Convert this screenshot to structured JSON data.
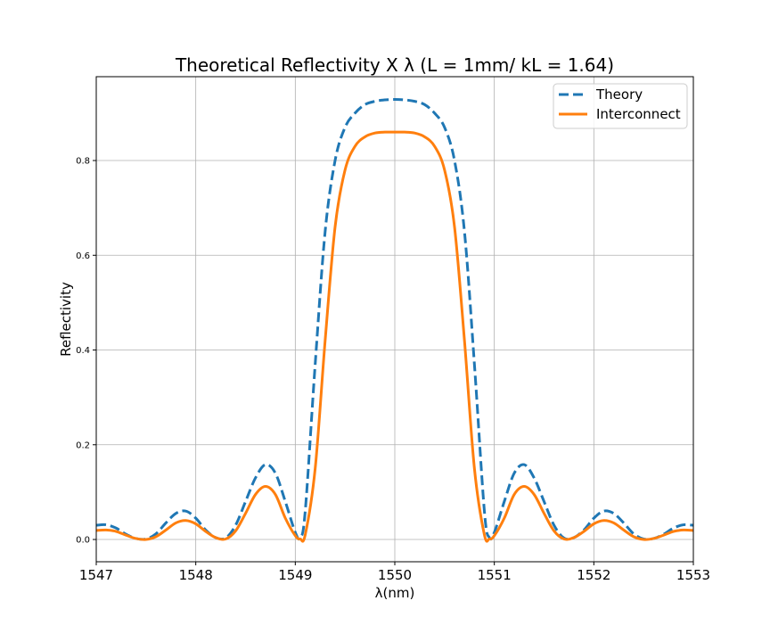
{
  "chart_data": {
    "type": "line",
    "title": "Theoretical Reflectivity X λ (L = 1mm/ kL = 1.64)",
    "xlabel": "λ(nm)",
    "ylabel": "Reflectivity",
    "xlim": [
      1547,
      1553
    ],
    "ylim": [
      -0.047,
      0.977
    ],
    "xticks": [
      "1547",
      "1548",
      "1549",
      "1550",
      "1551",
      "1552",
      "1553"
    ],
    "yticks": [
      "0.0",
      "0.2",
      "0.4",
      "0.6",
      "0.8"
    ],
    "grid": true,
    "legend_position": "top-right",
    "x": [
      1547.0,
      1547.1,
      1547.2,
      1547.3,
      1547.4,
      1547.5,
      1547.6,
      1547.7,
      1547.8,
      1547.9,
      1548.0,
      1548.1,
      1548.2,
      1548.3,
      1548.4,
      1548.5,
      1548.6,
      1548.7,
      1548.8,
      1548.9,
      1549.0,
      1549.05,
      1549.1,
      1549.2,
      1549.3,
      1549.4,
      1549.5,
      1549.6,
      1549.7,
      1549.8,
      1549.9,
      1550.0,
      1550.1,
      1550.2,
      1550.3,
      1550.4,
      1550.5,
      1550.6,
      1550.7,
      1550.8,
      1550.9,
      1550.95,
      1551.0,
      1551.1,
      1551.2,
      1551.3,
      1551.4,
      1551.5,
      1551.6,
      1551.7,
      1551.8,
      1551.9,
      1552.0,
      1552.1,
      1552.2,
      1552.3,
      1552.4,
      1552.5,
      1552.6,
      1552.7,
      1552.8,
      1552.9,
      1553.0
    ],
    "series": [
      {
        "name": "Theory",
        "color": "#1f77b4",
        "style": "dashed",
        "values": [
          0.03,
          0.031,
          0.024,
          0.011,
          0.002,
          0.001,
          0.012,
          0.035,
          0.055,
          0.06,
          0.045,
          0.02,
          0.004,
          0.003,
          0.03,
          0.08,
          0.13,
          0.158,
          0.14,
          0.08,
          0.015,
          0.004,
          0.06,
          0.37,
          0.65,
          0.8,
          0.87,
          0.9,
          0.918,
          0.925,
          0.928,
          0.929,
          0.928,
          0.925,
          0.918,
          0.9,
          0.87,
          0.8,
          0.65,
          0.37,
          0.06,
          0.004,
          0.015,
          0.08,
          0.14,
          0.158,
          0.13,
          0.08,
          0.03,
          0.003,
          0.004,
          0.02,
          0.045,
          0.06,
          0.055,
          0.035,
          0.012,
          0.001,
          0.002,
          0.011,
          0.024,
          0.031,
          0.03
        ]
      },
      {
        "name": "Interconnect",
        "color": "#ff7f0e",
        "style": "solid",
        "values": [
          0.019,
          0.02,
          0.017,
          0.009,
          0.002,
          0.0,
          0.006,
          0.02,
          0.035,
          0.04,
          0.033,
          0.017,
          0.004,
          0.001,
          0.018,
          0.055,
          0.095,
          0.112,
          0.095,
          0.045,
          0.008,
          0.001,
          0.01,
          0.15,
          0.42,
          0.66,
          0.78,
          0.83,
          0.85,
          0.858,
          0.86,
          0.86,
          0.86,
          0.858,
          0.85,
          0.83,
          0.78,
          0.66,
          0.42,
          0.15,
          0.01,
          0.001,
          0.008,
          0.045,
          0.095,
          0.112,
          0.095,
          0.055,
          0.018,
          0.001,
          0.004,
          0.017,
          0.033,
          0.04,
          0.035,
          0.02,
          0.006,
          0.0,
          0.002,
          0.009,
          0.017,
          0.02,
          0.019
        ]
      }
    ]
  }
}
